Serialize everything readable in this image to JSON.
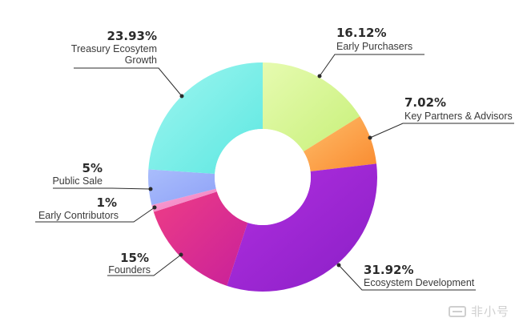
{
  "chart_data": {
    "type": "pie",
    "variant": "donut",
    "start_angle_deg": 0,
    "direction": "clockwise",
    "slices": [
      {
        "label": "Early Purchasers",
        "value": 16.12,
        "display": "16.12%",
        "color": "#c8f07a",
        "color_light": "#e6fbb0"
      },
      {
        "label": "Key Partners & Advisors",
        "value": 7.02,
        "display": "7.02%",
        "color": "#f98a2f",
        "color_light": "#ffbd6a"
      },
      {
        "label": "Ecosystem Development",
        "value": 31.92,
        "display": "31.92%",
        "color": "#8a1fc6",
        "color_light": "#b12fe0"
      },
      {
        "label": "Founders",
        "value": 15,
        "display": "15%",
        "color": "#c8209a",
        "color_light": "#ee3d86"
      },
      {
        "label": "Early Contributors",
        "value": 1,
        "display": "1%",
        "color": "#f27bbf",
        "color_light": "#f8a6d6"
      },
      {
        "label": "Public Sale",
        "value": 5,
        "display": "5%",
        "color": "#8fa2f7",
        "color_light": "#a9bdfc"
      },
      {
        "label": "Treasury Ecosytem Growth",
        "label_lines": [
          "Treasury Ecosytem",
          "Growth"
        ],
        "value": 23.93,
        "display": "23.93%",
        "color": "#5ce7e1",
        "color_light": "#9ff6f0"
      }
    ]
  },
  "watermark": {
    "text": "非小号",
    "mark_icon": "exchange-logo-icon"
  }
}
